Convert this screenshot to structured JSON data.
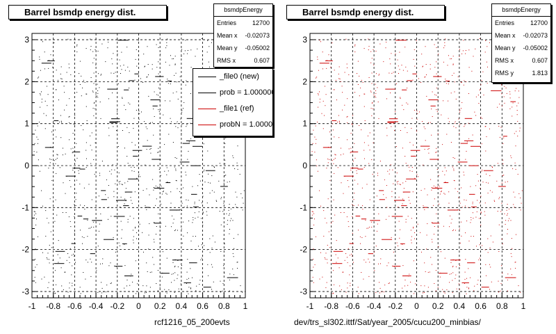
{
  "chart_data": [
    {
      "type": "scatter",
      "title": "Barrel bsmdp energy dist.",
      "xlim": [
        -1,
        1
      ],
      "ylim": [
        -3.15,
        3.15
      ],
      "xticks": [
        "-1",
        "-0.8",
        "-0.6",
        "-0.4",
        "-0.2",
        "0",
        "0.2",
        "0.4",
        "0.6",
        "0.8",
        "1"
      ],
      "yticks": [
        "-3",
        "-2",
        "-1",
        "0",
        "1",
        "2",
        "3"
      ],
      "grid": true,
      "marker_color": "#000000",
      "caption": "rcf1216_05_200evts",
      "stats": {
        "name": "bsmdpEnergy",
        "rows": [
          {
            "label": "Entries",
            "value": "12700"
          },
          {
            "label": "Mean x",
            "value": "-0.02073"
          },
          {
            "label": "Mean y",
            "value": "-0.05002"
          },
          {
            "label": "RMS x",
            "value": "0.607"
          }
        ]
      },
      "legend": {
        "placement": "top-right",
        "entries": [
          {
            "label": "_file0 (new)",
            "color": "#000000"
          },
          {
            "label": "prob = 1.000000",
            "color": "#000000"
          },
          {
            "label": "_file1 (ref)",
            "color": "#cc0000"
          },
          {
            "label": "probN = 1.000000",
            "color": "#cc0000"
          }
        ]
      }
    },
    {
      "type": "scatter",
      "title": "Barrel bsmdp energy dist.",
      "xlim": [
        -1,
        1
      ],
      "ylim": [
        -3.15,
        3.15
      ],
      "xticks": [
        "-1",
        "-0.8",
        "-0.6",
        "-0.4",
        "-0.2",
        "0",
        "0.2",
        "0.4",
        "0.6",
        "0.8",
        "1"
      ],
      "yticks": [
        "-3",
        "-2",
        "-1",
        "0",
        "1",
        "2",
        "3"
      ],
      "grid": true,
      "marker_color": "#cc0000",
      "caption": "dev/trs_sl302.ittf/Sat/year_2005/cucu200_minbias/",
      "stats": {
        "name": "bsmdpEnergy",
        "rows": [
          {
            "label": "Entries",
            "value": "12700"
          },
          {
            "label": "Mean x",
            "value": "-0.02073"
          },
          {
            "label": "Mean y",
            "value": "-0.05002"
          },
          {
            "label": "RMS x",
            "value": "0.607"
          },
          {
            "label": "RMS y",
            "value": "1.813"
          }
        ]
      }
    }
  ]
}
